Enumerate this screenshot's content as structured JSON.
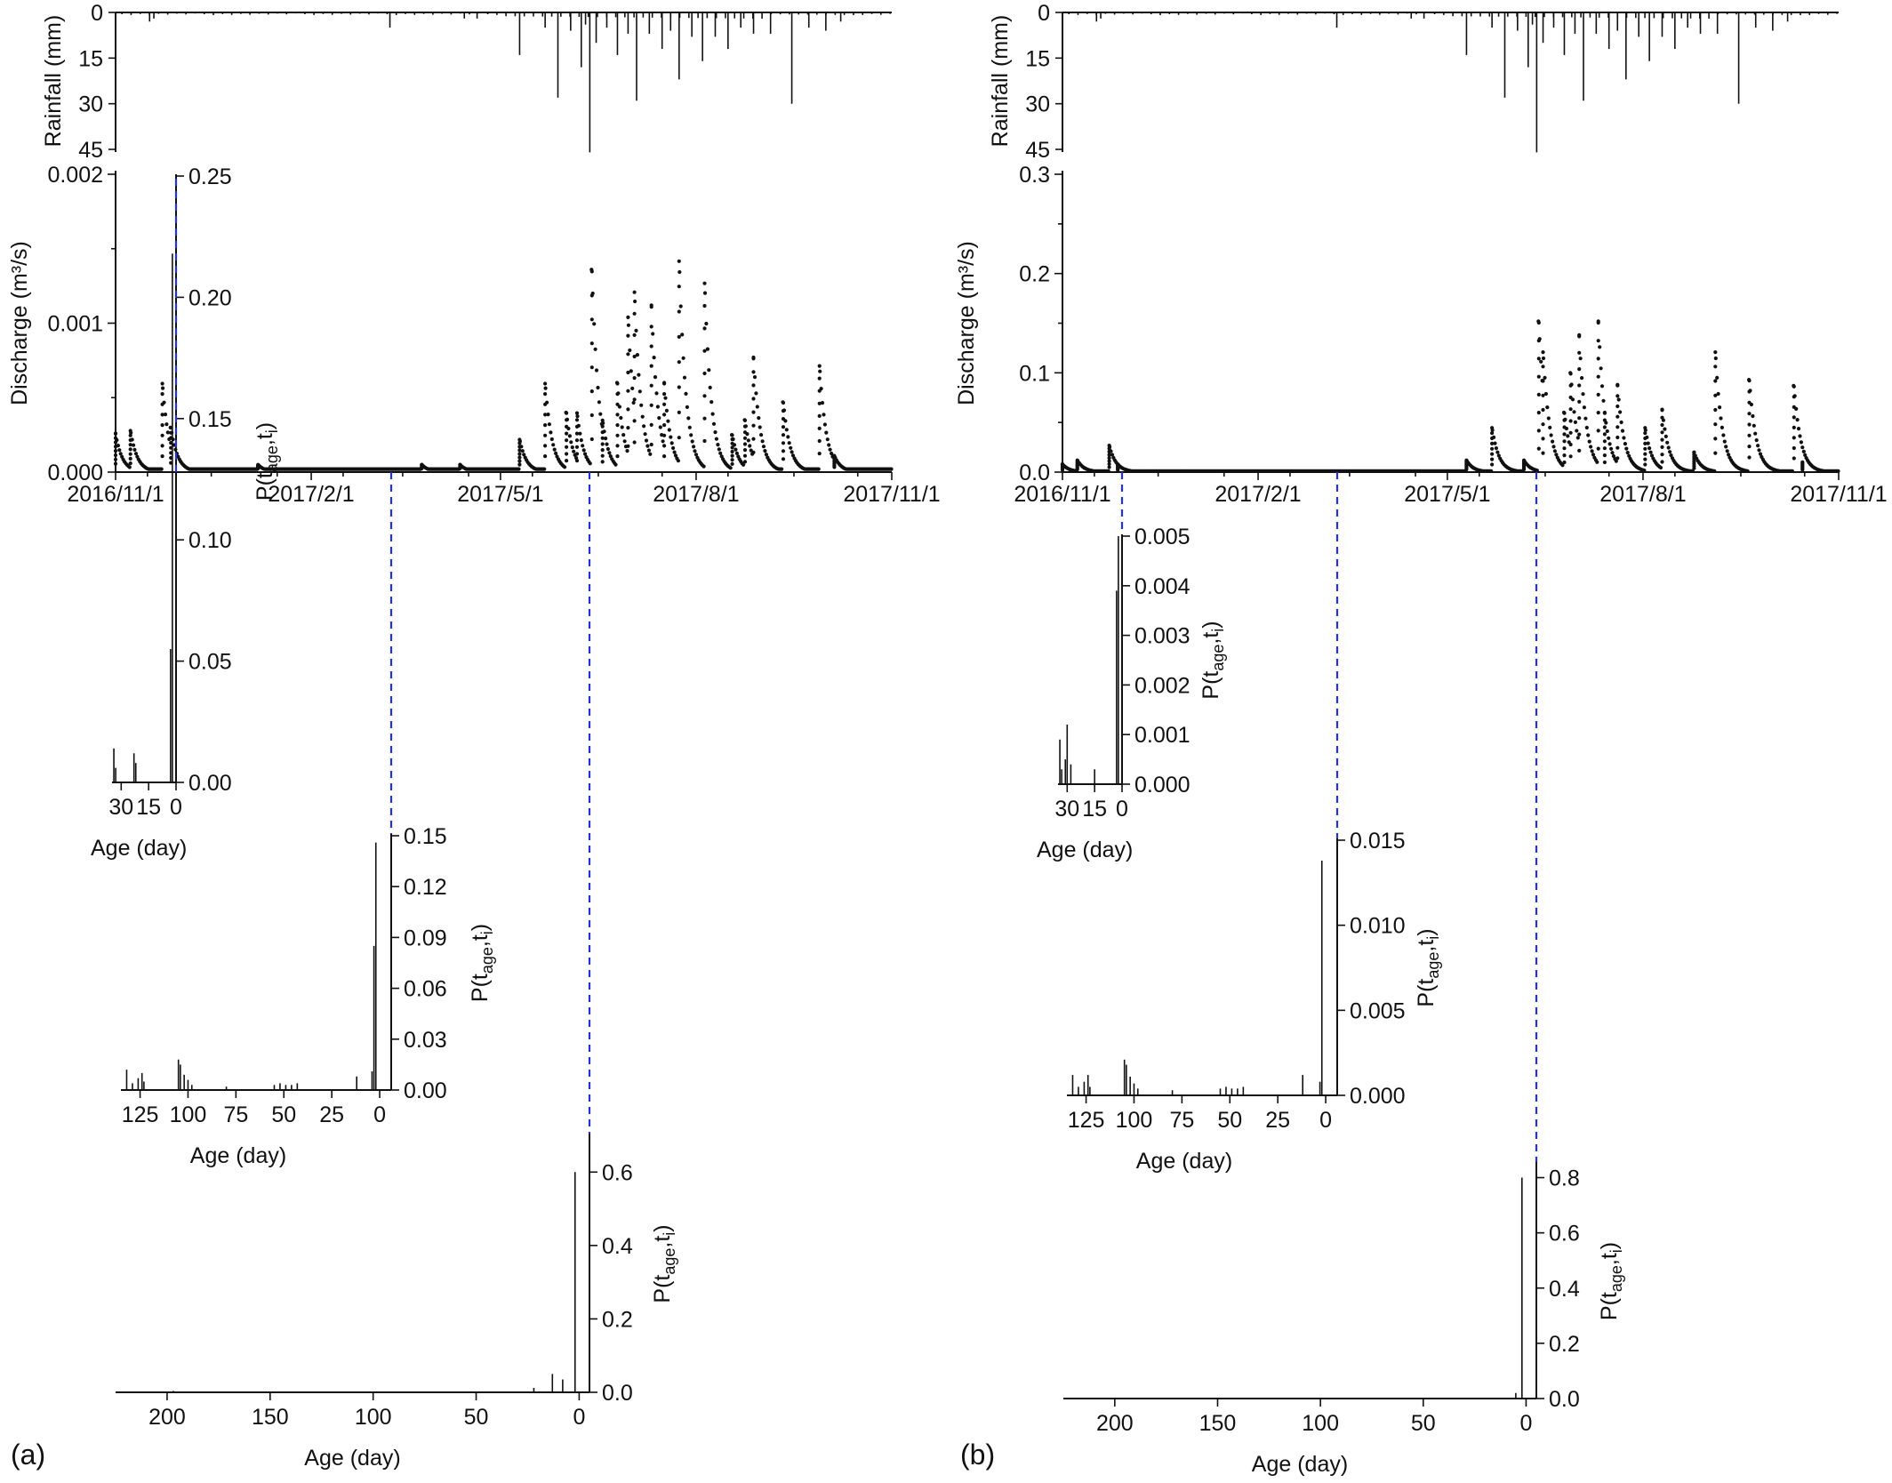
{
  "panels": [
    {
      "label": "(a)",
      "rainfall": {
        "ylabel": "Rainfall (mm)",
        "yticks": [
          0,
          15,
          30,
          45
        ],
        "ylim": [
          0,
          45
        ],
        "events": [
          {
            "date": "2016-11-17",
            "mm": 3
          },
          {
            "date": "2016-11-19",
            "mm": 2
          },
          {
            "date": "2017-03-10",
            "mm": 5
          },
          {
            "date": "2017-04-14",
            "mm": 2
          },
          {
            "date": "2017-04-20",
            "mm": 2
          },
          {
            "date": "2017-05-10",
            "mm": 14
          },
          {
            "date": "2017-05-22",
            "mm": 5
          },
          {
            "date": "2017-05-28",
            "mm": 28
          },
          {
            "date": "2017-06-03",
            "mm": 6
          },
          {
            "date": "2017-06-08",
            "mm": 18
          },
          {
            "date": "2017-06-10",
            "mm": 4
          },
          {
            "date": "2017-06-12",
            "mm": 46
          },
          {
            "date": "2017-06-15",
            "mm": 10
          },
          {
            "date": "2017-06-20",
            "mm": 5
          },
          {
            "date": "2017-06-25",
            "mm": 14
          },
          {
            "date": "2017-06-30",
            "mm": 7
          },
          {
            "date": "2017-07-04",
            "mm": 29
          },
          {
            "date": "2017-07-10",
            "mm": 7
          },
          {
            "date": "2017-07-16",
            "mm": 12
          },
          {
            "date": "2017-07-20",
            "mm": 6
          },
          {
            "date": "2017-07-24",
            "mm": 22
          },
          {
            "date": "2017-07-30",
            "mm": 8
          },
          {
            "date": "2017-08-04",
            "mm": 16
          },
          {
            "date": "2017-08-10",
            "mm": 8
          },
          {
            "date": "2017-08-16",
            "mm": 12
          },
          {
            "date": "2017-08-22",
            "mm": 5
          },
          {
            "date": "2017-08-28",
            "mm": 7
          },
          {
            "date": "2017-09-05",
            "mm": 7
          },
          {
            "date": "2017-09-15",
            "mm": 30
          },
          {
            "date": "2017-09-23",
            "mm": 5
          },
          {
            "date": "2017-10-01",
            "mm": 6
          },
          {
            "date": "2017-10-08",
            "mm": 3
          }
        ]
      },
      "discharge": {
        "ylabel": "Discharge (m³/s)",
        "yticks": [
          "0.000",
          "0.001",
          "0.002"
        ],
        "ylim": [
          0,
          0.002
        ],
        "xlim": [
          "2016-11-01",
          "2017-11-01"
        ],
        "xticks": [
          "2016/11/1",
          "2017/2/1",
          "2017/5/1",
          "2017/8/1",
          "2017/11/1"
        ],
        "baseflow": 2e-05,
        "peaks": [
          {
            "date": "2016-11-01",
            "q": 0.00026
          },
          {
            "date": "2016-11-08",
            "q": 0.00028
          },
          {
            "date": "2016-11-23",
            "q": 0.0006
          },
          {
            "date": "2016-11-27",
            "q": 0.0003
          },
          {
            "date": "2017-01-07",
            "q": 5e-05
          },
          {
            "date": "2017-03-25",
            "q": 5e-05
          },
          {
            "date": "2017-04-12",
            "q": 5e-05
          },
          {
            "date": "2017-05-10",
            "q": 0.00022
          },
          {
            "date": "2017-05-22",
            "q": 0.0006
          },
          {
            "date": "2017-06-01",
            "q": 0.0004
          },
          {
            "date": "2017-06-06",
            "q": 0.0004
          },
          {
            "date": "2017-06-13",
            "q": 0.00136
          },
          {
            "date": "2017-06-18",
            "q": 0.00035
          },
          {
            "date": "2017-06-25",
            "q": 0.0006
          },
          {
            "date": "2017-06-30",
            "q": 0.00105
          },
          {
            "date": "2017-07-03",
            "q": 0.00122
          },
          {
            "date": "2017-07-11",
            "q": 0.00112
          },
          {
            "date": "2017-07-17",
            "q": 0.0006
          },
          {
            "date": "2017-07-24",
            "q": 0.00143
          },
          {
            "date": "2017-08-05",
            "q": 0.00128
          },
          {
            "date": "2017-08-18",
            "q": 0.00025
          },
          {
            "date": "2017-08-24",
            "q": 0.00035
          },
          {
            "date": "2017-08-28",
            "q": 0.00077
          },
          {
            "date": "2017-09-11",
            "q": 0.00047
          },
          {
            "date": "2017-09-28",
            "q": 0.00072
          },
          {
            "date": "2017-10-05",
            "q": 0.00011
          }
        ]
      },
      "age_distributions": [
        {
          "ylabel": "P(t_age,t_i)",
          "xlabel": "Age (day)",
          "xlim": [
            35,
            0
          ],
          "xticks": [
            30,
            15,
            0
          ],
          "ylim": [
            0,
            0.25
          ],
          "yticks": [
            "0.00",
            "0.05",
            "0.10",
            "0.15",
            "0.20",
            "0.25"
          ],
          "bars": [
            {
              "age": 34,
              "p": 0.014
            },
            {
              "age": 33,
              "p": 0.006
            },
            {
              "age": 23,
              "p": 0.012
            },
            {
              "age": 22,
              "p": 0.008
            },
            {
              "age": 3,
              "p": 0.055
            },
            {
              "age": 2,
              "p": 0.218
            }
          ]
        },
        {
          "ylabel": "P(t_age,t_i)",
          "xlabel": "Age (day)",
          "xlim": [
            135,
            -6
          ],
          "xticks": [
            125,
            100,
            75,
            50,
            25,
            0
          ],
          "ylim": [
            0,
            0.15
          ],
          "yticks": [
            "0.00",
            "0.03",
            "0.06",
            "0.09",
            "0.12",
            "0.15"
          ],
          "bars": [
            {
              "age": 132,
              "p": 0.012
            },
            {
              "age": 129,
              "p": 0.004
            },
            {
              "age": 126,
              "p": 0.007
            },
            {
              "age": 124,
              "p": 0.01
            },
            {
              "age": 123,
              "p": 0.005
            },
            {
              "age": 105,
              "p": 0.018
            },
            {
              "age": 104,
              "p": 0.015
            },
            {
              "age": 102,
              "p": 0.009
            },
            {
              "age": 100,
              "p": 0.006
            },
            {
              "age": 98,
              "p": 0.003
            },
            {
              "age": 80,
              "p": 0.002
            },
            {
              "age": 55,
              "p": 0.003
            },
            {
              "age": 52,
              "p": 0.004
            },
            {
              "age": 49,
              "p": 0.003
            },
            {
              "age": 46,
              "p": 0.003
            },
            {
              "age": 43,
              "p": 0.004
            },
            {
              "age": 12,
              "p": 0.008
            },
            {
              "age": 4,
              "p": 0.011
            },
            {
              "age": 3,
              "p": 0.085
            },
            {
              "age": 2,
              "p": 0.146
            }
          ]
        },
        {
          "ylabel": "P(t_age,t_i)",
          "xlabel": "Age (day)",
          "xlim": [
            225,
            -5
          ],
          "xticks": [
            200,
            150,
            100,
            50,
            0
          ],
          "ylim": [
            0,
            0.7
          ],
          "yticks": [
            "0.0",
            "0.2",
            "0.4",
            "0.6"
          ],
          "bars": [
            {
              "age": 197,
              "p": 0.004
            },
            {
              "age": 22,
              "p": 0.012
            },
            {
              "age": 13,
              "p": 0.05
            },
            {
              "age": 8,
              "p": 0.035
            },
            {
              "age": 2,
              "p": 0.6
            }
          ]
        }
      ]
    },
    {
      "label": "(b)",
      "rainfall": {
        "ylabel": "Rainfall (mm)",
        "yticks": [
          0,
          15,
          30,
          45
        ],
        "ylim": [
          0,
          45
        ],
        "events": [
          {
            "date": "2016-11-17",
            "mm": 3
          },
          {
            "date": "2016-11-19",
            "mm": 2
          },
          {
            "date": "2017-03-10",
            "mm": 5
          },
          {
            "date": "2017-04-14",
            "mm": 2
          },
          {
            "date": "2017-04-20",
            "mm": 2
          },
          {
            "date": "2017-05-10",
            "mm": 14
          },
          {
            "date": "2017-05-22",
            "mm": 5
          },
          {
            "date": "2017-05-28",
            "mm": 28
          },
          {
            "date": "2017-06-03",
            "mm": 6
          },
          {
            "date": "2017-06-08",
            "mm": 18
          },
          {
            "date": "2017-06-10",
            "mm": 4
          },
          {
            "date": "2017-06-12",
            "mm": 46
          },
          {
            "date": "2017-06-15",
            "mm": 10
          },
          {
            "date": "2017-06-20",
            "mm": 5
          },
          {
            "date": "2017-06-25",
            "mm": 14
          },
          {
            "date": "2017-06-30",
            "mm": 7
          },
          {
            "date": "2017-07-04",
            "mm": 29
          },
          {
            "date": "2017-07-10",
            "mm": 7
          },
          {
            "date": "2017-07-16",
            "mm": 12
          },
          {
            "date": "2017-07-20",
            "mm": 6
          },
          {
            "date": "2017-07-24",
            "mm": 22
          },
          {
            "date": "2017-07-30",
            "mm": 8
          },
          {
            "date": "2017-08-04",
            "mm": 16
          },
          {
            "date": "2017-08-10",
            "mm": 8
          },
          {
            "date": "2017-08-16",
            "mm": 12
          },
          {
            "date": "2017-08-22",
            "mm": 5
          },
          {
            "date": "2017-08-28",
            "mm": 7
          },
          {
            "date": "2017-09-05",
            "mm": 7
          },
          {
            "date": "2017-09-15",
            "mm": 30
          },
          {
            "date": "2017-09-23",
            "mm": 5
          },
          {
            "date": "2017-10-01",
            "mm": 6
          },
          {
            "date": "2017-10-08",
            "mm": 3
          }
        ]
      },
      "discharge": {
        "ylabel": "Discharge (m³/s)",
        "yticks": [
          "0.0",
          "0.1",
          "0.2",
          "0.3"
        ],
        "ylim": [
          0,
          0.3
        ],
        "xlim": [
          "2016-11-01",
          "2017-11-01"
        ],
        "xticks": [
          "2016/11/1",
          "2017/2/1",
          "2017/5/1",
          "2017/8/1",
          "2017/11/1"
        ],
        "baseflow": 0.001,
        "peaks": [
          {
            "date": "2016-11-01",
            "q": 0.008
          },
          {
            "date": "2016-11-08",
            "q": 0.012
          },
          {
            "date": "2016-11-23",
            "q": 0.027
          },
          {
            "date": "2016-11-27",
            "q": 0.008
          },
          {
            "date": "2017-05-10",
            "q": 0.012
          },
          {
            "date": "2017-05-22",
            "q": 0.045
          },
          {
            "date": "2017-06-06",
            "q": 0.012
          },
          {
            "date": "2017-06-13",
            "q": 0.152
          },
          {
            "date": "2017-06-15",
            "q": 0.122
          },
          {
            "date": "2017-06-25",
            "q": 0.06
          },
          {
            "date": "2017-06-28",
            "q": 0.1
          },
          {
            "date": "2017-07-02",
            "q": 0.138
          },
          {
            "date": "2017-07-11",
            "q": 0.152
          },
          {
            "date": "2017-07-14",
            "q": 0.06
          },
          {
            "date": "2017-07-20",
            "q": 0.088
          },
          {
            "date": "2017-08-02",
            "q": 0.045
          },
          {
            "date": "2017-08-10",
            "q": 0.063
          },
          {
            "date": "2017-08-25",
            "q": 0.02
          },
          {
            "date": "2017-09-04",
            "q": 0.122
          },
          {
            "date": "2017-09-20",
            "q": 0.093
          },
          {
            "date": "2017-10-11",
            "q": 0.087
          },
          {
            "date": "2017-10-15",
            "q": 0.01
          }
        ]
      },
      "age_distributions": [
        {
          "ylabel": "P(t_age,t_i)",
          "xlabel": "Age (day)",
          "xlim": [
            35,
            0
          ],
          "xticks": [
            30,
            15,
            0
          ],
          "ylim": [
            0,
            0.005
          ],
          "yticks": [
            "0.000",
            "0.001",
            "0.002",
            "0.003",
            "0.004",
            "0.005"
          ],
          "bars": [
            {
              "age": 34,
              "p": 0.0009
            },
            {
              "age": 33,
              "p": 0.0003
            },
            {
              "age": 31,
              "p": 0.0005
            },
            {
              "age": 30,
              "p": 0.0012
            },
            {
              "age": 28,
              "p": 0.0004
            },
            {
              "age": 15,
              "p": 0.0003
            },
            {
              "age": 3,
              "p": 0.0039
            },
            {
              "age": 2,
              "p": 0.005
            }
          ]
        },
        {
          "ylabel": "P(t_age,t_i)",
          "xlabel": "Age (day)",
          "xlim": [
            135,
            -6
          ],
          "xticks": [
            125,
            100,
            75,
            50,
            25,
            0
          ],
          "ylim": [
            0,
            0.015
          ],
          "yticks": [
            "0.000",
            "0.005",
            "0.010",
            "0.015"
          ],
          "bars": [
            {
              "age": 132,
              "p": 0.0012
            },
            {
              "age": 129,
              "p": 0.0005
            },
            {
              "age": 126,
              "p": 0.0008
            },
            {
              "age": 124,
              "p": 0.0012
            },
            {
              "age": 123,
              "p": 0.0005
            },
            {
              "age": 105,
              "p": 0.0021
            },
            {
              "age": 104,
              "p": 0.0018
            },
            {
              "age": 102,
              "p": 0.0011
            },
            {
              "age": 100,
              "p": 0.0007
            },
            {
              "age": 98,
              "p": 0.0004
            },
            {
              "age": 80,
              "p": 0.0003
            },
            {
              "age": 55,
              "p": 0.0004
            },
            {
              "age": 52,
              "p": 0.0005
            },
            {
              "age": 49,
              "p": 0.0004
            },
            {
              "age": 46,
              "p": 0.0004
            },
            {
              "age": 43,
              "p": 0.0005
            },
            {
              "age": 12,
              "p": 0.0012
            },
            {
              "age": 3,
              "p": 0.0008
            },
            {
              "age": 2,
              "p": 0.0138
            }
          ]
        },
        {
          "ylabel": "P(t_age,t_i)",
          "xlabel": "Age (day)",
          "xlim": [
            225,
            -5
          ],
          "xticks": [
            200,
            150,
            100,
            50,
            0
          ],
          "ylim": [
            0,
            0.85
          ],
          "yticks": [
            "0.0",
            "0.2",
            "0.4",
            "0.6",
            "0.8"
          ],
          "bars": [
            {
              "age": 5,
              "p": 0.02
            },
            {
              "age": 2,
              "p": 0.8
            }
          ]
        }
      ]
    }
  ]
}
